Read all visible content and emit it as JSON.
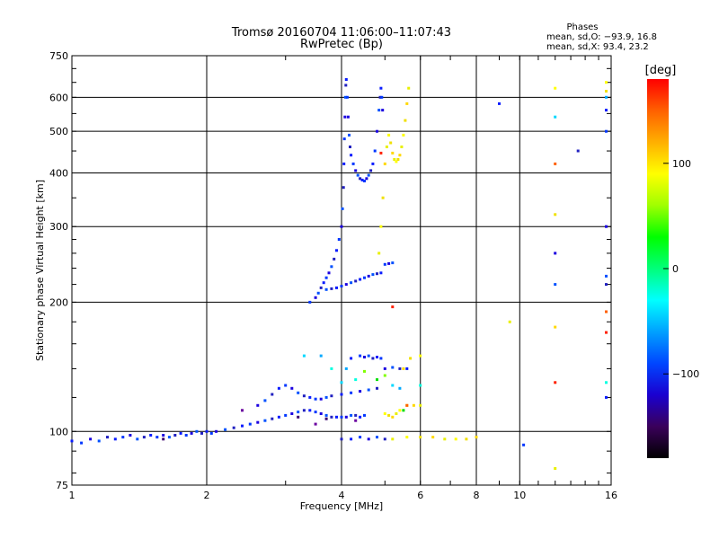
{
  "chart_data": {
    "type": "scatter",
    "title": "Tromsø 20160704 11:06:00–11:07:43",
    "subtitle": "RwPretec (Bp)",
    "xlabel": "Frequency [MHz]",
    "ylabel": "Stationary phase Virtual Height [km]",
    "x_scale": "log",
    "y_scale": "log",
    "xlim": [
      1,
      16
    ],
    "ylim": [
      75,
      750
    ],
    "x_ticks": [
      1,
      2,
      4,
      6,
      8,
      10,
      16
    ],
    "x_tick_labels": [
      "1",
      "2",
      "4",
      "6",
      "8",
      "10",
      "16"
    ],
    "y_ticks": [
      75,
      100,
      200,
      300,
      400,
      500,
      600,
      750
    ],
    "y_tick_labels": [
      "75",
      "100",
      "200",
      "300",
      "400",
      "500",
      "600",
      "750"
    ],
    "grid": true,
    "phase_stats": {
      "heading": "Phases",
      "line_o": "mean, sd,O: −93.9, 16.8",
      "line_x": "mean, sd,X:  93.4, 23.2"
    },
    "colorbar": {
      "label": "[deg]",
      "range": [
        -180,
        180
      ],
      "ticks": [
        100,
        0,
        -100
      ],
      "tick_labels": [
        "100",
        "0",
        "−100"
      ],
      "colors": [
        "#000000",
        "#3a005a",
        "#1a00d0",
        "#0046ff",
        "#00a0ff",
        "#00ffff",
        "#00ff7a",
        "#00ff00",
        "#a0ff00",
        "#ffff00",
        "#ffb000",
        "#ff6000",
        "#ff0000"
      ]
    },
    "series": [
      {
        "color_group": "blue",
        "points": [
          [
            1.0,
            95
          ],
          [
            1.05,
            94
          ],
          [
            1.1,
            96
          ],
          [
            1.15,
            95
          ],
          [
            1.2,
            97
          ],
          [
            1.25,
            96
          ],
          [
            1.3,
            97
          ],
          [
            1.35,
            98
          ],
          [
            1.4,
            96
          ],
          [
            1.45,
            97
          ],
          [
            1.5,
            98
          ],
          [
            1.55,
            97
          ],
          [
            1.6,
            98
          ],
          [
            1.65,
            97
          ],
          [
            1.7,
            98
          ],
          [
            1.75,
            99
          ],
          [
            1.8,
            98
          ],
          [
            1.85,
            99
          ],
          [
            1.9,
            100
          ],
          [
            1.95,
            99
          ],
          [
            2.0,
            100
          ],
          [
            2.05,
            99
          ],
          [
            2.1,
            100
          ],
          [
            2.2,
            101
          ],
          [
            2.3,
            102
          ],
          [
            2.4,
            103
          ],
          [
            2.5,
            104
          ],
          [
            2.6,
            105
          ],
          [
            2.7,
            106
          ],
          [
            2.8,
            107
          ],
          [
            2.9,
            108
          ],
          [
            3.0,
            109
          ],
          [
            3.1,
            110
          ],
          [
            3.2,
            111
          ],
          [
            3.3,
            112
          ],
          [
            3.4,
            112
          ],
          [
            3.5,
            111
          ],
          [
            3.6,
            110
          ],
          [
            3.7,
            109
          ],
          [
            3.8,
            108
          ],
          [
            3.9,
            108
          ],
          [
            4.0,
            108
          ],
          [
            4.1,
            108
          ],
          [
            4.2,
            109
          ],
          [
            4.3,
            109
          ],
          [
            4.4,
            108
          ],
          [
            4.5,
            109
          ],
          [
            2.6,
            115
          ],
          [
            2.7,
            118
          ],
          [
            2.8,
            122
          ],
          [
            2.9,
            126
          ],
          [
            3.0,
            128
          ],
          [
            3.1,
            126
          ],
          [
            3.2,
            123
          ],
          [
            3.3,
            121
          ],
          [
            3.4,
            120
          ],
          [
            3.5,
            119
          ],
          [
            3.6,
            119
          ],
          [
            3.7,
            120
          ],
          [
            3.8,
            121
          ],
          [
            4.0,
            122
          ],
          [
            4.2,
            123
          ],
          [
            4.4,
            124
          ],
          [
            4.6,
            125
          ],
          [
            4.8,
            126
          ],
          [
            4.2,
            148
          ],
          [
            4.4,
            150
          ],
          [
            4.5,
            149
          ],
          [
            4.6,
            150
          ],
          [
            4.7,
            148
          ],
          [
            4.8,
            149
          ],
          [
            4.9,
            148
          ],
          [
            5.0,
            140
          ],
          [
            5.2,
            141
          ],
          [
            5.4,
            140
          ],
          [
            5.6,
            140
          ],
          [
            3.4,
            200
          ],
          [
            3.5,
            205
          ],
          [
            3.55,
            210
          ],
          [
            3.6,
            216
          ],
          [
            3.65,
            222
          ],
          [
            3.7,
            228
          ],
          [
            3.75,
            234
          ],
          [
            3.8,
            242
          ],
          [
            3.85,
            252
          ],
          [
            3.9,
            264
          ],
          [
            3.95,
            280
          ],
          [
            4.0,
            300
          ],
          [
            4.02,
            330
          ],
          [
            4.04,
            370
          ],
          [
            4.05,
            420
          ],
          [
            4.06,
            480
          ],
          [
            4.07,
            540
          ],
          [
            4.08,
            600
          ],
          [
            4.09,
            640
          ],
          [
            4.1,
            660
          ],
          [
            4.12,
            600
          ],
          [
            4.14,
            540
          ],
          [
            4.16,
            490
          ],
          [
            4.18,
            460
          ],
          [
            4.2,
            440
          ],
          [
            4.25,
            420
          ],
          [
            4.3,
            405
          ],
          [
            4.35,
            395
          ],
          [
            4.4,
            388
          ],
          [
            4.45,
            385
          ],
          [
            4.5,
            383
          ],
          [
            4.55,
            388
          ],
          [
            4.6,
            395
          ],
          [
            4.65,
            405
          ],
          [
            4.7,
            420
          ],
          [
            4.75,
            450
          ],
          [
            4.8,
            500
          ],
          [
            4.85,
            560
          ],
          [
            4.88,
            600
          ],
          [
            4.9,
            630
          ],
          [
            4.92,
            600
          ],
          [
            4.94,
            560
          ],
          [
            3.7,
            214
          ],
          [
            3.8,
            215
          ],
          [
            3.9,
            216
          ],
          [
            4.0,
            218
          ],
          [
            4.1,
            220
          ],
          [
            4.2,
            222
          ],
          [
            4.3,
            224
          ],
          [
            4.4,
            226
          ],
          [
            4.5,
            228
          ],
          [
            4.6,
            230
          ],
          [
            4.7,
            232
          ],
          [
            4.8,
            233
          ],
          [
            4.9,
            234
          ],
          [
            5.0,
            245
          ],
          [
            5.1,
            246
          ],
          [
            5.2,
            247
          ],
          [
            4.0,
            96
          ],
          [
            4.2,
            96
          ],
          [
            4.4,
            97
          ],
          [
            4.6,
            96
          ],
          [
            4.8,
            97
          ],
          [
            5.0,
            96
          ],
          [
            9.0,
            580
          ],
          [
            10.2,
            93
          ],
          [
            12.0,
            260
          ],
          [
            12.0,
            220
          ],
          [
            13.5,
            450
          ],
          [
            15.6,
            560
          ],
          [
            15.6,
            500
          ],
          [
            15.6,
            300
          ],
          [
            15.6,
            230
          ],
          [
            15.6,
            220
          ],
          [
            15.6,
            120
          ]
        ]
      },
      {
        "color_group": "yellow",
        "points": [
          [
            4.85,
            260
          ],
          [
            4.9,
            300
          ],
          [
            4.95,
            350
          ],
          [
            5.0,
            420
          ],
          [
            5.05,
            460
          ],
          [
            5.1,
            490
          ],
          [
            5.15,
            470
          ],
          [
            5.2,
            445
          ],
          [
            5.25,
            430
          ],
          [
            5.3,
            425
          ],
          [
            5.35,
            430
          ],
          [
            5.4,
            440
          ],
          [
            5.45,
            460
          ],
          [
            5.5,
            490
          ],
          [
            5.55,
            530
          ],
          [
            5.6,
            580
          ],
          [
            5.65,
            630
          ],
          [
            5.0,
            110
          ],
          [
            5.1,
            109
          ],
          [
            5.2,
            108
          ],
          [
            5.3,
            110
          ],
          [
            5.4,
            112
          ],
          [
            5.6,
            115
          ],
          [
            5.8,
            115
          ],
          [
            6.0,
            115
          ],
          [
            6.0,
            150
          ],
          [
            5.7,
            148
          ],
          [
            5.5,
            140
          ],
          [
            5.2,
            96
          ],
          [
            5.6,
            97
          ],
          [
            6.0,
            97
          ],
          [
            6.4,
            97
          ],
          [
            6.8,
            96
          ],
          [
            7.2,
            96
          ],
          [
            7.6,
            96
          ],
          [
            8.0,
            97
          ],
          [
            9.5,
            180
          ],
          [
            12.0,
            630
          ],
          [
            12.0,
            320
          ],
          [
            12.0,
            175
          ],
          [
            12.0,
            82
          ],
          [
            15.6,
            650
          ],
          [
            15.6,
            620
          ]
        ]
      },
      {
        "color_group": "red",
        "points": [
          [
            4.9,
            445
          ],
          [
            5.6,
            115
          ],
          [
            5.2,
            195
          ],
          [
            12.0,
            420
          ],
          [
            12.0,
            130
          ],
          [
            15.6,
            190
          ],
          [
            15.6,
            170
          ]
        ]
      },
      {
        "color_group": "cyan",
        "points": [
          [
            3.3,
            150
          ],
          [
            3.6,
            150
          ],
          [
            3.8,
            140
          ],
          [
            4.0,
            130
          ],
          [
            4.1,
            140
          ],
          [
            4.3,
            132
          ],
          [
            5.2,
            128
          ],
          [
            5.4,
            126
          ],
          [
            6.0,
            128
          ],
          [
            12.0,
            540
          ],
          [
            15.6,
            600
          ],
          [
            15.6,
            130
          ]
        ]
      },
      {
        "color_group": "green",
        "points": [
          [
            4.5,
            138
          ],
          [
            4.8,
            132
          ],
          [
            5.0,
            135
          ],
          [
            5.5,
            112
          ]
        ]
      },
      {
        "color_group": "purple",
        "points": [
          [
            1.6,
            96
          ],
          [
            2.4,
            112
          ],
          [
            3.2,
            108
          ],
          [
            3.5,
            104
          ],
          [
            3.7,
            107
          ],
          [
            4.3,
            106
          ]
        ]
      }
    ]
  }
}
